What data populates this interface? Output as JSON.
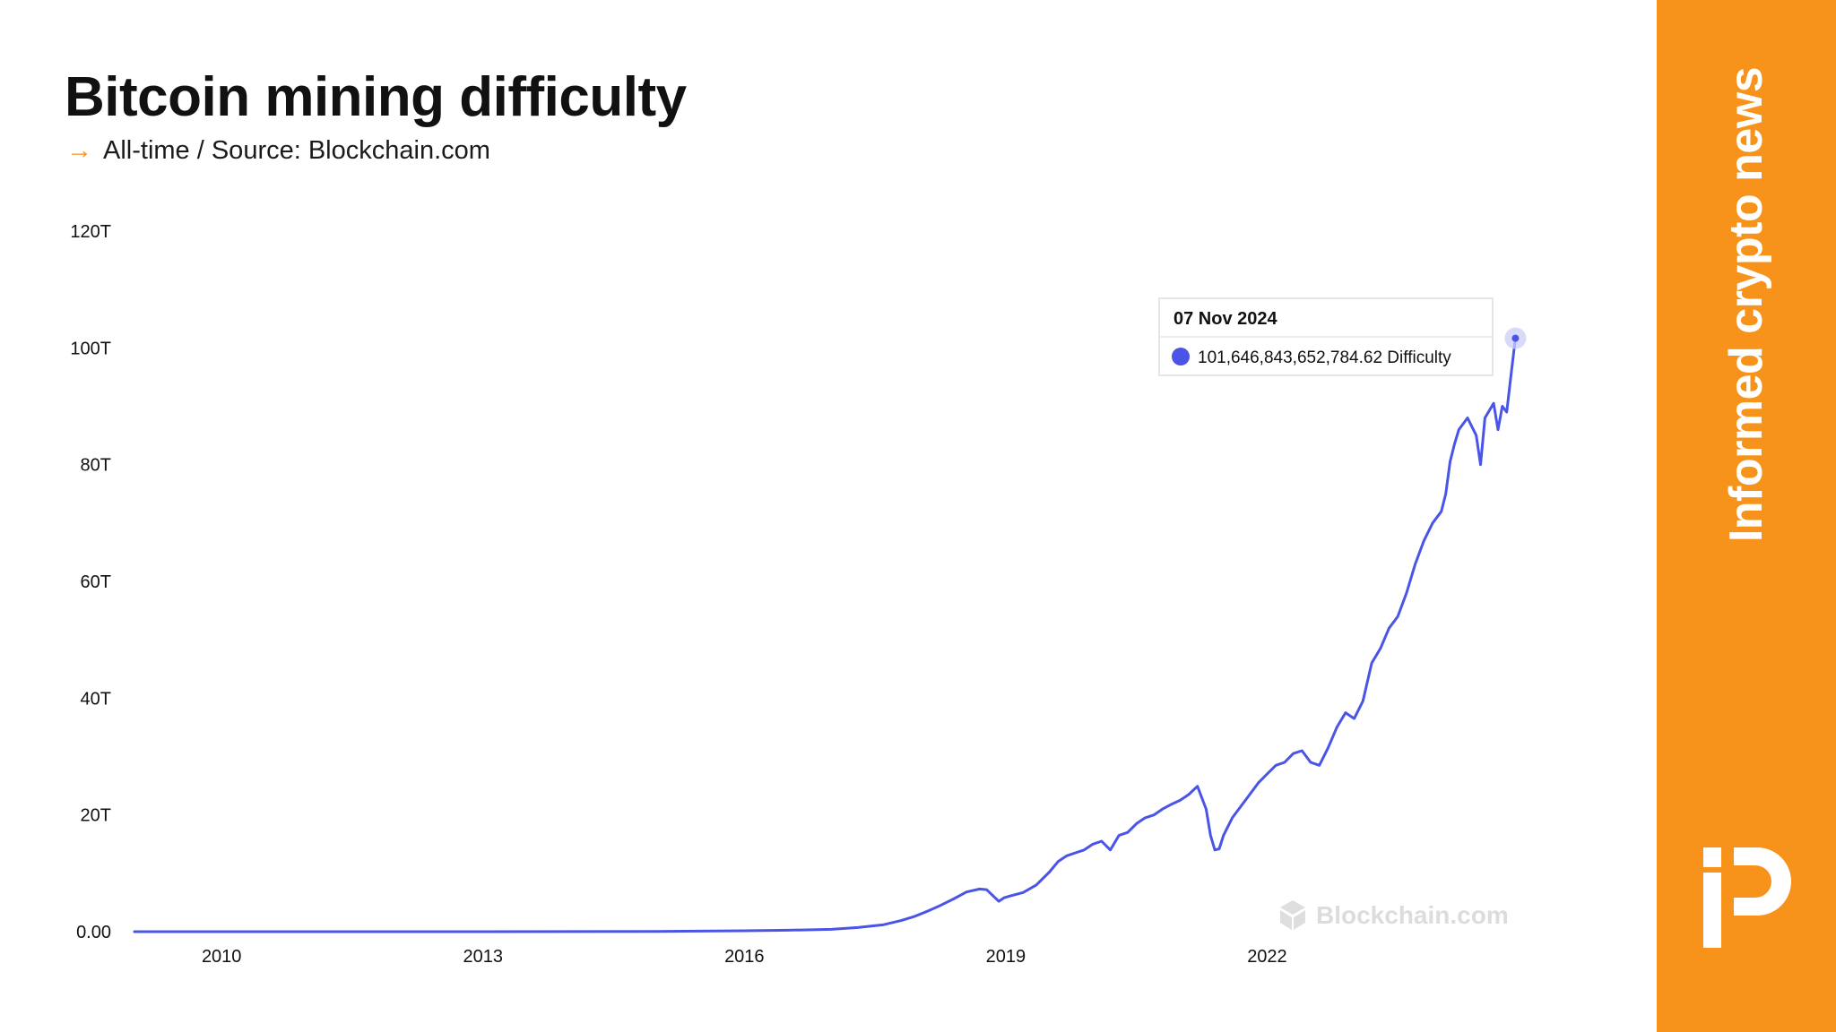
{
  "header": {
    "title": "Bitcoin mining difficulty",
    "subtitle_arrow": "→",
    "subtitle": "All-time / Source: Blockchain.com"
  },
  "sidebar": {
    "tagline": "Informed crypto news",
    "logo_icon": "publisher-logo-icon",
    "background": "#f7931a"
  },
  "watermark": {
    "text": "Blockchain.com",
    "icon": "blockchain-cube-icon"
  },
  "tooltip": {
    "date": "07 Nov 2024",
    "value_text": "101,646,843,652,784.62 Difficulty",
    "marker_color": "#4a55e8"
  },
  "colors": {
    "line": "#4a55e8",
    "accent": "#f7931a"
  },
  "chart_data": {
    "type": "line",
    "title": "Bitcoin mining difficulty",
    "subtitle": "All-time / Source: Blockchain.com",
    "xlabel": "",
    "ylabel": "",
    "unit": "T",
    "x_tick_values": [
      2010,
      2013,
      2016,
      2019,
      2022
    ],
    "x_tick_labels": [
      "2010",
      "2013",
      "2016",
      "2019",
      "2022"
    ],
    "y_tick_values": [
      0,
      20,
      40,
      60,
      80,
      100,
      120
    ],
    "y_tick_labels": [
      "0.00",
      "20T",
      "40T",
      "60T",
      "80T",
      "100T",
      "120T"
    ],
    "xlim": [
      2009.0,
      2025.0
    ],
    "ylim": [
      0,
      120
    ],
    "grid": false,
    "legend": "none",
    "series": [
      {
        "x": [
          2009.0,
          2010.0,
          2011.0,
          2012.0,
          2013.0,
          2014.0,
          2015.0,
          2016.0,
          2016.5,
          2017.0,
          2017.3,
          2017.6,
          2017.8,
          2017.95,
          2018.1,
          2018.25,
          2018.4,
          2018.55,
          2018.7,
          2018.78,
          2018.85,
          2018.92,
          2018.98,
          2019.05,
          2019.2,
          2019.35,
          2019.5,
          2019.6,
          2019.7,
          2019.8,
          2019.9,
          2020.0,
          2020.1,
          2020.2,
          2020.3,
          2020.4,
          2020.5,
          2020.6,
          2020.7,
          2020.8,
          2020.9,
          2021.0,
          2021.1,
          2021.2,
          2021.3,
          2021.35,
          2021.4,
          2021.45,
          2021.5,
          2021.55,
          2021.6,
          2021.7,
          2021.8,
          2021.9,
          2022.0,
          2022.1,
          2022.2,
          2022.3,
          2022.4,
          2022.5,
          2022.6,
          2022.7,
          2022.8,
          2022.9,
          2023.0,
          2023.1,
          2023.2,
          2023.3,
          2023.4,
          2023.5,
          2023.6,
          2023.7,
          2023.8,
          2023.9,
          2024.0,
          2024.05,
          2024.1,
          2024.15,
          2024.2,
          2024.3,
          2024.4,
          2024.45,
          2024.5,
          2024.6,
          2024.65,
          2024.7,
          2024.75,
          2024.8,
          2024.85
        ],
        "y": [
          0,
          0,
          0,
          0,
          0,
          0.01,
          0.05,
          0.15,
          0.25,
          0.4,
          0.7,
          1.2,
          1.9,
          2.6,
          3.5,
          4.5,
          5.6,
          6.8,
          7.3,
          7.2,
          6.2,
          5.2,
          5.8,
          6.1,
          6.7,
          8.0,
          10.2,
          12.0,
          13.0,
          13.5,
          14.0,
          15.0,
          15.5,
          14.0,
          16.5,
          17.0,
          18.5,
          19.5,
          20.0,
          21.0,
          21.8,
          22.5,
          23.5,
          24.9,
          21.0,
          16.5,
          14.0,
          14.2,
          16.5,
          18.0,
          19.5,
          21.5,
          23.5,
          25.5,
          27.0,
          28.5,
          29.0,
          30.5,
          31.0,
          29.0,
          28.5,
          31.5,
          35.0,
          37.5,
          36.5,
          39.5,
          46.0,
          48.5,
          52.0,
          54.0,
          58.0,
          63.0,
          67.0,
          70.0,
          72.0,
          75.0,
          80.5,
          83.5,
          86.0,
          88.0,
          85.0,
          80.0,
          88.0,
          90.5,
          86.0,
          90.0,
          89.0,
          95.5,
          101.65
        ]
      }
    ]
  }
}
